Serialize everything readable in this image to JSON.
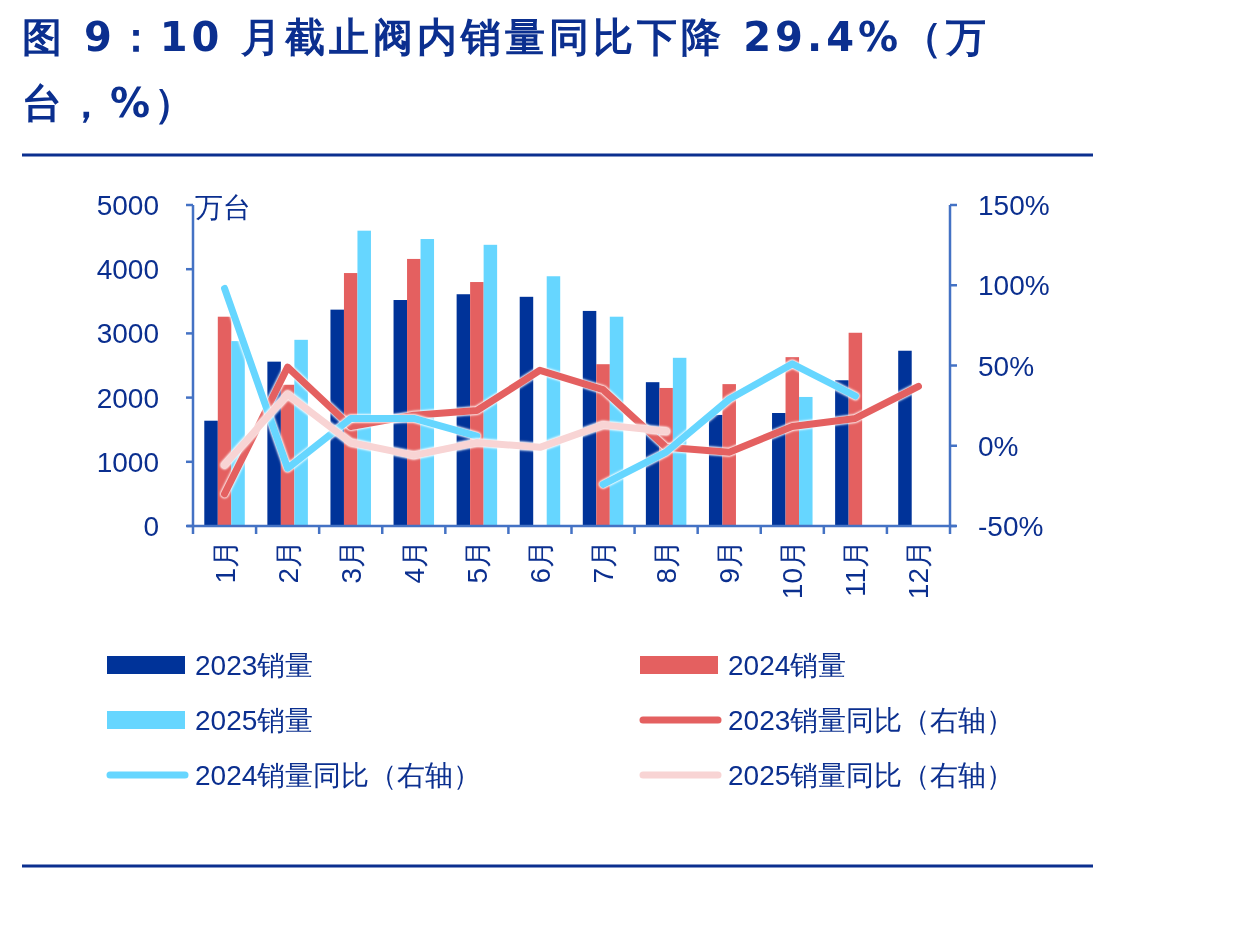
{
  "chart_data": {
    "type": "bar",
    "title": "图 9：10 月截止阀内销量同比下降 29.4%（万台，%）",
    "ylabel": "万台",
    "categories": [
      "1月",
      "2月",
      "3月",
      "4月",
      "5月",
      "6月",
      "7月",
      "8月",
      "9月",
      "10月",
      "11月",
      "12月"
    ],
    "series": [
      {
        "name": "2023销量",
        "color": "#003399",
        "values": [
          1640,
          2560,
          3370,
          3520,
          3610,
          3570,
          3350,
          2240,
          1730,
          1760,
          2270,
          2730
        ]
      },
      {
        "name": "2024销量",
        "color": "#e46060",
        "values": [
          3260,
          2200,
          3940,
          4160,
          3800,
          null,
          2520,
          2150,
          2210,
          2630,
          3010,
          null
        ]
      },
      {
        "name": "2025销量",
        "color": "#66d6ff",
        "values": [
          2880,
          2900,
          4600,
          4470,
          4380,
          3890,
          3260,
          2620,
          null,
          2010,
          null,
          null
        ]
      },
      {
        "name": "2023销量同比（右轴）",
        "type": "line",
        "axis": "y2",
        "color": "#e46060",
        "values": [
          -30,
          49,
          12,
          19,
          22,
          47,
          35,
          -1,
          -4,
          12,
          17,
          37
        ]
      },
      {
        "name": "2024销量同比（右轴）",
        "type": "line",
        "axis": "y2",
        "color": "#66d6ff",
        "values": [
          98,
          -14,
          17,
          17,
          6,
          null,
          -24,
          -4,
          29,
          51,
          31,
          null
        ]
      },
      {
        "name": "2025销量同比（右轴）",
        "type": "line",
        "axis": "y2",
        "color": "#f8d4d4",
        "values": [
          -12,
          32,
          2,
          -6,
          2,
          -1,
          13,
          9,
          null,
          null,
          null,
          null
        ]
      }
    ],
    "ylim": [
      0,
      5000
    ],
    "yticks": [
      0,
      1000,
      2000,
      3000,
      4000,
      5000
    ],
    "y2lim": [
      -50,
      150
    ],
    "y2ticks": [
      {
        "value": -50,
        "label": "-50%"
      },
      {
        "value": 0,
        "label": "0%"
      },
      {
        "value": 50,
        "label": "50%"
      },
      {
        "value": 100,
        "label": "100%"
      },
      {
        "value": 150,
        "label": "150%"
      }
    ],
    "legend": "bottom"
  }
}
